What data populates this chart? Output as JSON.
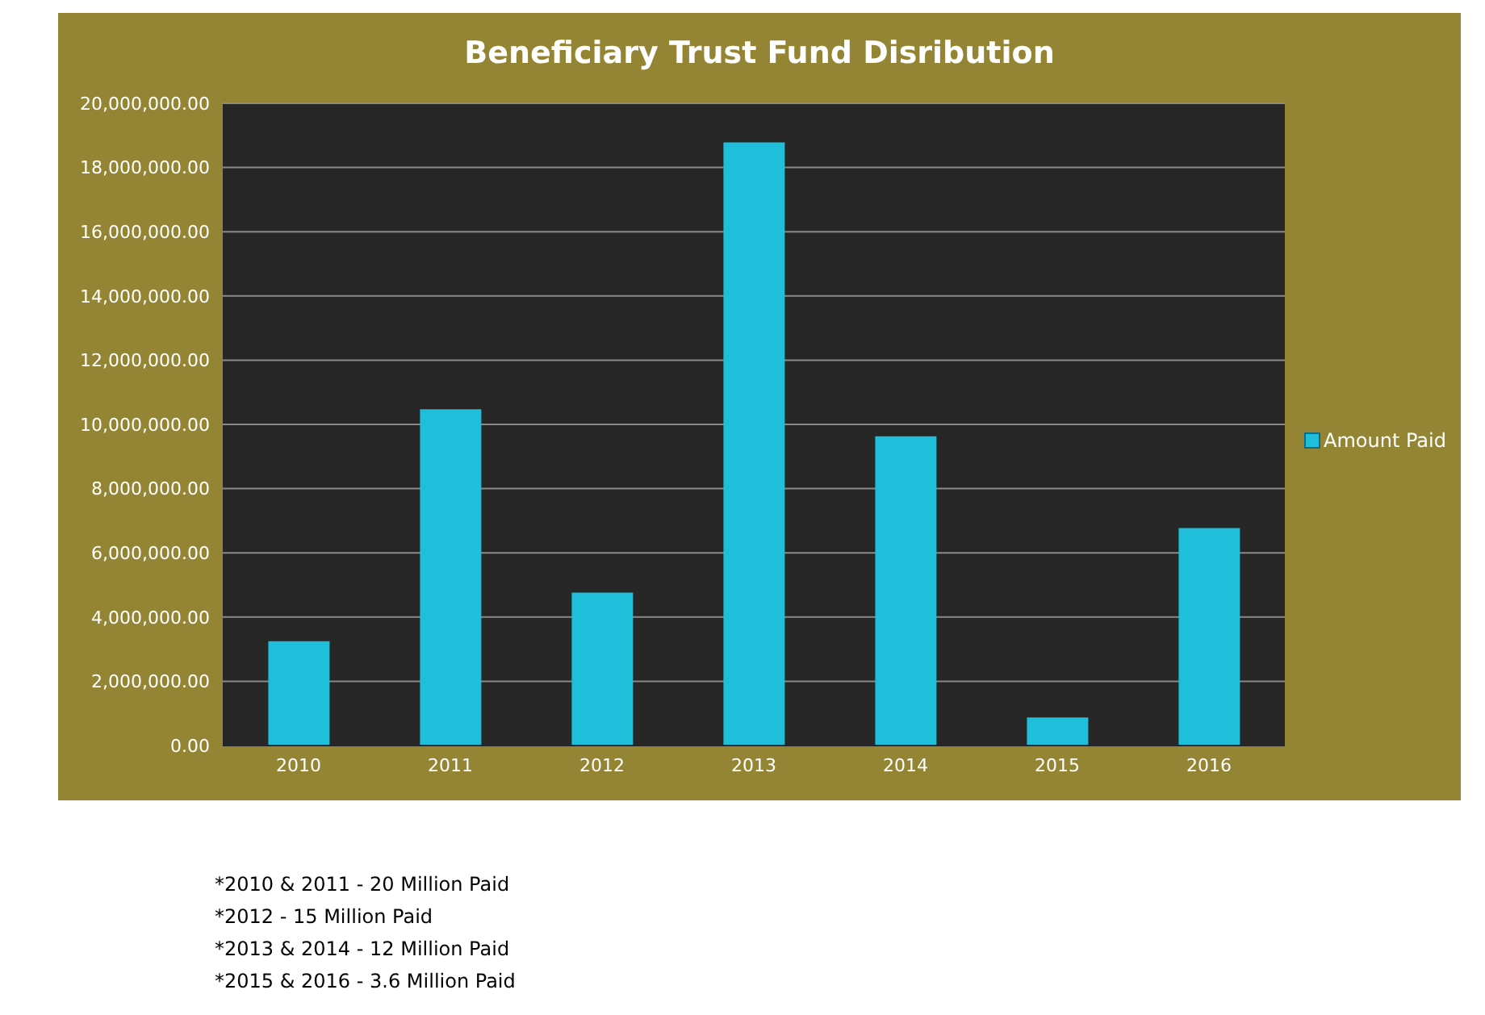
{
  "chart_data": {
    "type": "bar",
    "title": "Beneficiary Trust Fund Disribution",
    "categories": [
      "2010",
      "2011",
      "2012",
      "2013",
      "2014",
      "2015",
      "2016"
    ],
    "series": [
      {
        "name": "Amount Paid",
        "color": "#1fbfdc",
        "values": [
          3250000,
          10470000,
          4760000,
          18780000,
          9630000,
          870000,
          6770000
        ]
      }
    ],
    "ylim": [
      0,
      20000000
    ],
    "yticks": [
      {
        "value": 0,
        "label": "0.00"
      },
      {
        "value": 2000000,
        "label": "2,000,000.00"
      },
      {
        "value": 4000000,
        "label": "4,000,000.00"
      },
      {
        "value": 6000000,
        "label": "6,000,000.00"
      },
      {
        "value": 8000000,
        "label": "8,000,000.00"
      },
      {
        "value": 10000000,
        "label": "10,000,000.00"
      },
      {
        "value": 12000000,
        "label": "12,000,000.00"
      },
      {
        "value": 14000000,
        "label": "14,000,000.00"
      },
      {
        "value": 16000000,
        "label": "16,000,000.00"
      },
      {
        "value": 18000000,
        "label": "18,000,000.00"
      },
      {
        "value": 20000000,
        "label": "20,000,000.00"
      }
    ],
    "grid": "y",
    "legend": "right",
    "annotations": [
      "*2010 & 2011 - 20 Million Paid",
      "*2012 - 15 Million Paid",
      "*2013 & 2014 - 12 Million Paid",
      "*2015 & 2016 - 3.6 Million Paid"
    ]
  }
}
